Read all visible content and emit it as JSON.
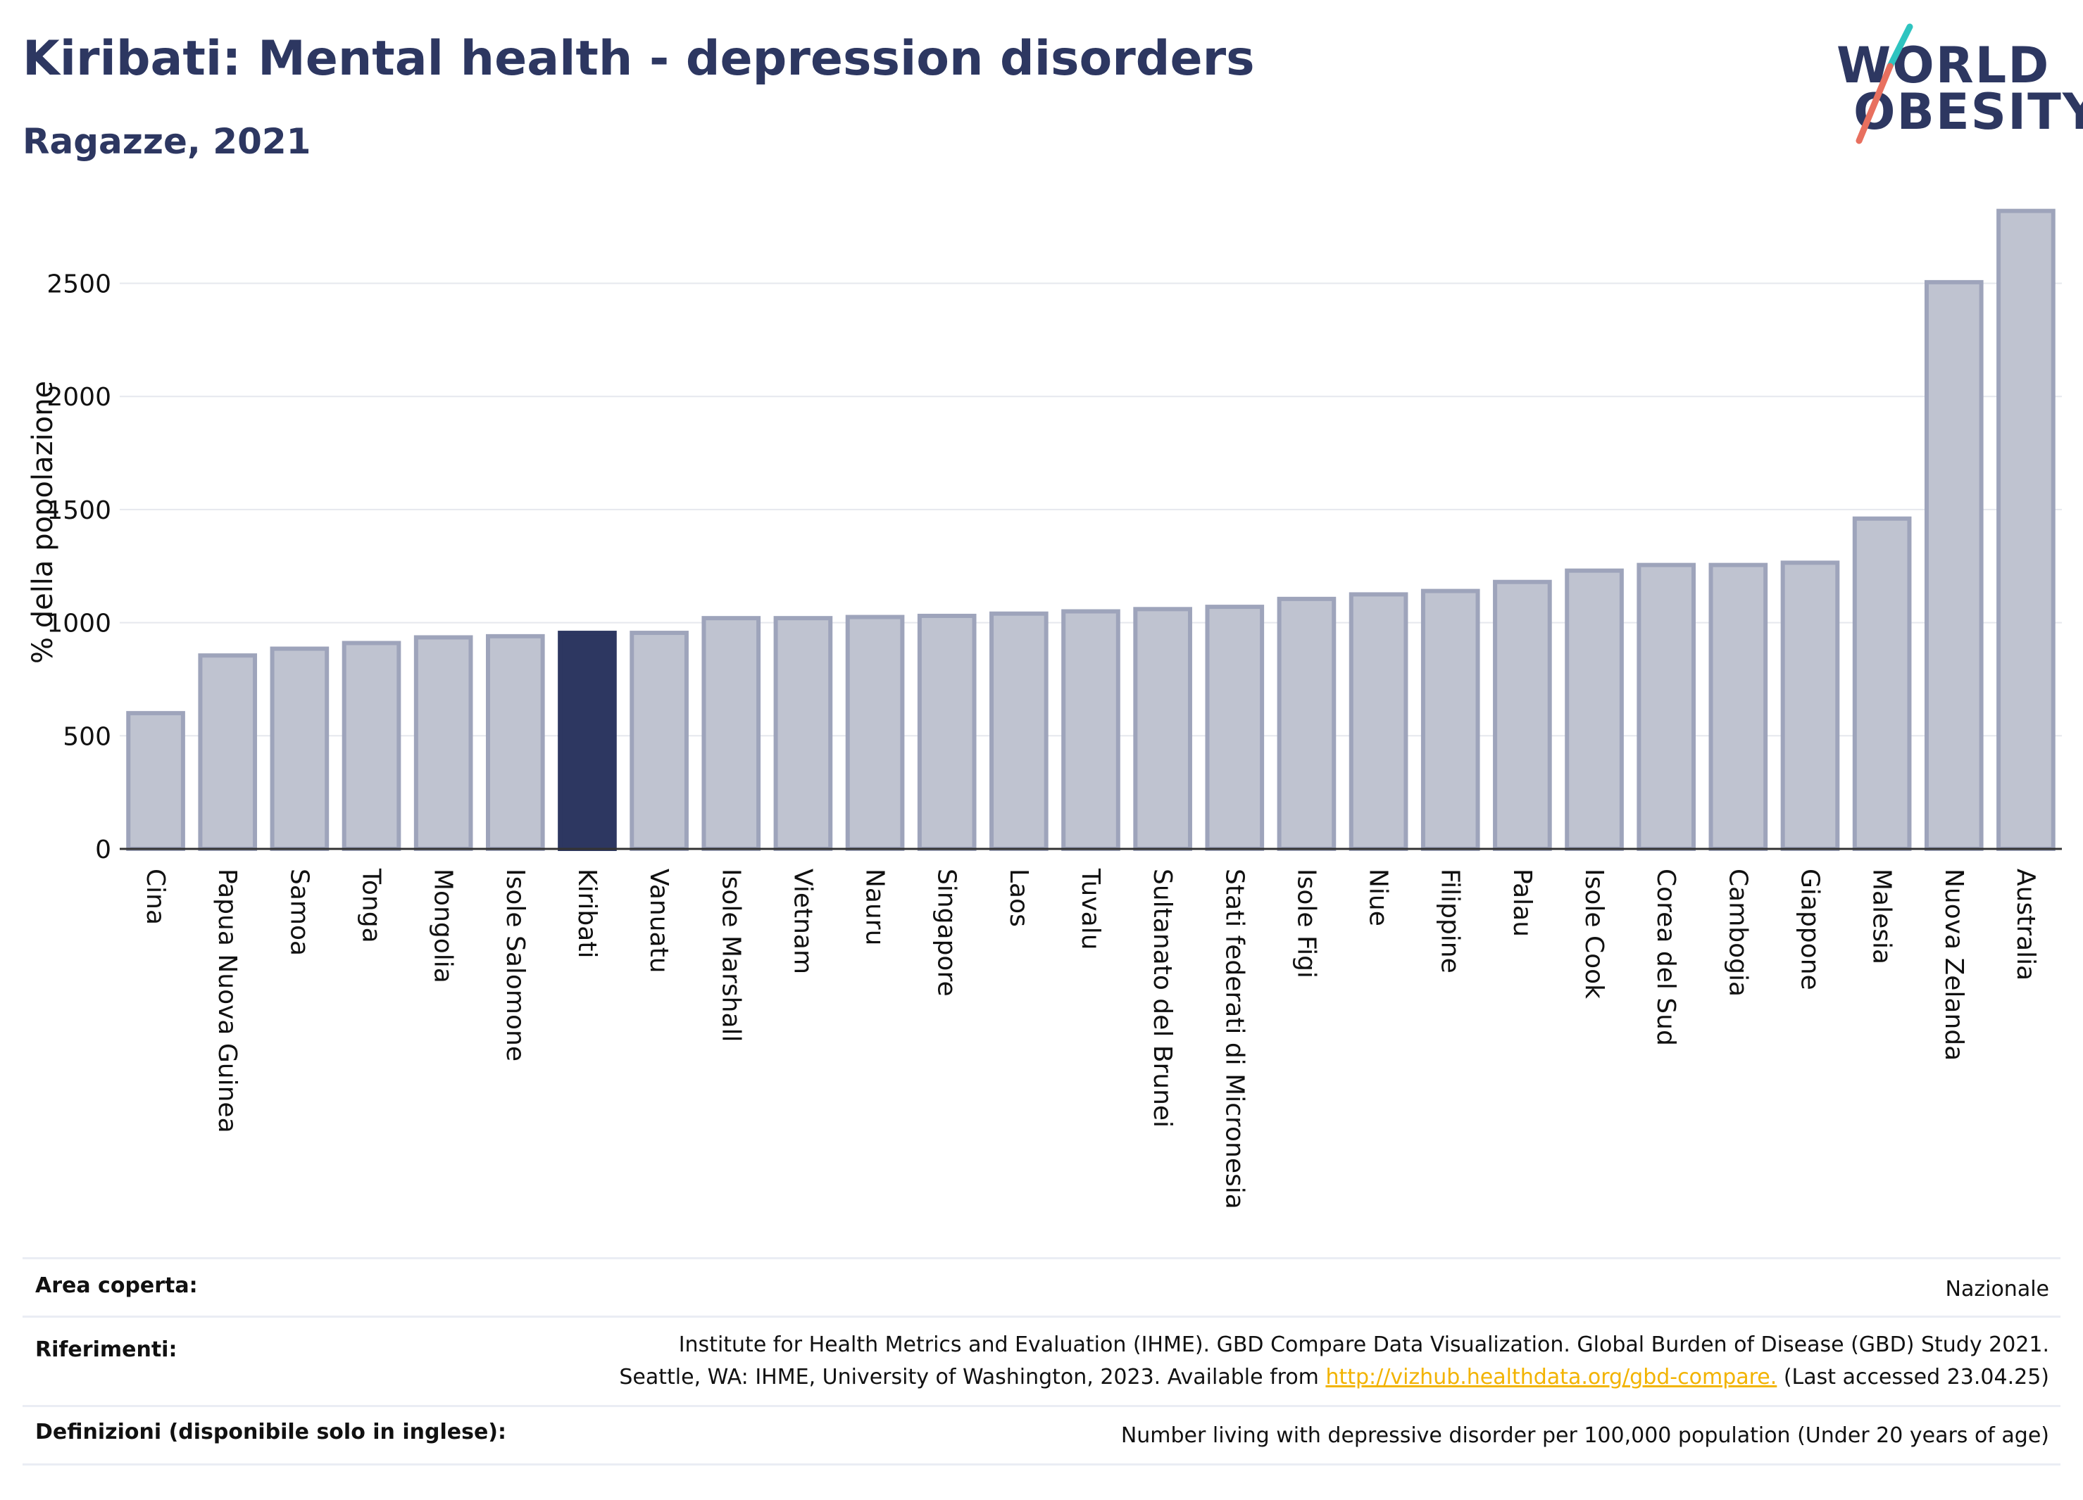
{
  "header": {
    "title": "Kiribati: Mental health - depression disorders",
    "subtitle": "Ragazze, 2021"
  },
  "logo": {
    "line1": "WORLD",
    "line2": "OBESITY"
  },
  "colors": {
    "bar": "#bfc3d0",
    "bar_stroke": "#9ea4bb",
    "highlight": "#2d3761",
    "grid": "#e6e8ee",
    "axis": "#333333"
  },
  "chart_data": {
    "type": "bar",
    "ylabel": "% della popolazione",
    "ylim": [
      0,
      2850
    ],
    "yticks": [
      0,
      500,
      1000,
      1500,
      2000,
      2500
    ],
    "grid": true,
    "highlight": "Kiribati",
    "categories": [
      "Cina",
      "Papua Nuova Guinea",
      "Samoa",
      "Tonga",
      "Mongolia",
      "Isole Salomone",
      "Kiribati",
      "Vanuatu",
      "Isole Marshall",
      "Vietnam",
      "Nauru",
      "Singapore",
      "Laos",
      "Tuvalu",
      "Sultanato del Brunei",
      "Stati federati di Micronesia",
      "Isole Figi",
      "Niue",
      "Filippine",
      "Palau",
      "Isole Cook",
      "Corea del Sud",
      "Cambogia",
      "Giappone",
      "Malesia",
      "Nuova Zelanda",
      "Australia"
    ],
    "values": [
      600,
      855,
      885,
      910,
      935,
      940,
      955,
      955,
      1020,
      1020,
      1025,
      1030,
      1040,
      1050,
      1060,
      1070,
      1105,
      1125,
      1140,
      1180,
      1230,
      1255,
      1255,
      1265,
      1460,
      2505,
      2820
    ]
  },
  "footer": {
    "area_label": "Area coperta:",
    "area_value": "Nazionale",
    "ref_label": "Riferimenti:",
    "ref_line1": "Institute for Health Metrics and Evaluation (IHME). GBD Compare Data Visualization. Global Burden of Disease (GBD) Study 2021.",
    "ref_line2_pre": "Seattle, WA: IHME, University of Washington, 2023. Available from ",
    "ref_link": "http://vizhub.healthdata.org/gbd-compare.",
    "ref_line2_post": " (Last accessed 23.04.25)",
    "def_label": "Definizioni (disponibile solo in inglese):",
    "def_value": "Number living with depressive disorder per 100,000 population (Under 20 years of age)"
  }
}
